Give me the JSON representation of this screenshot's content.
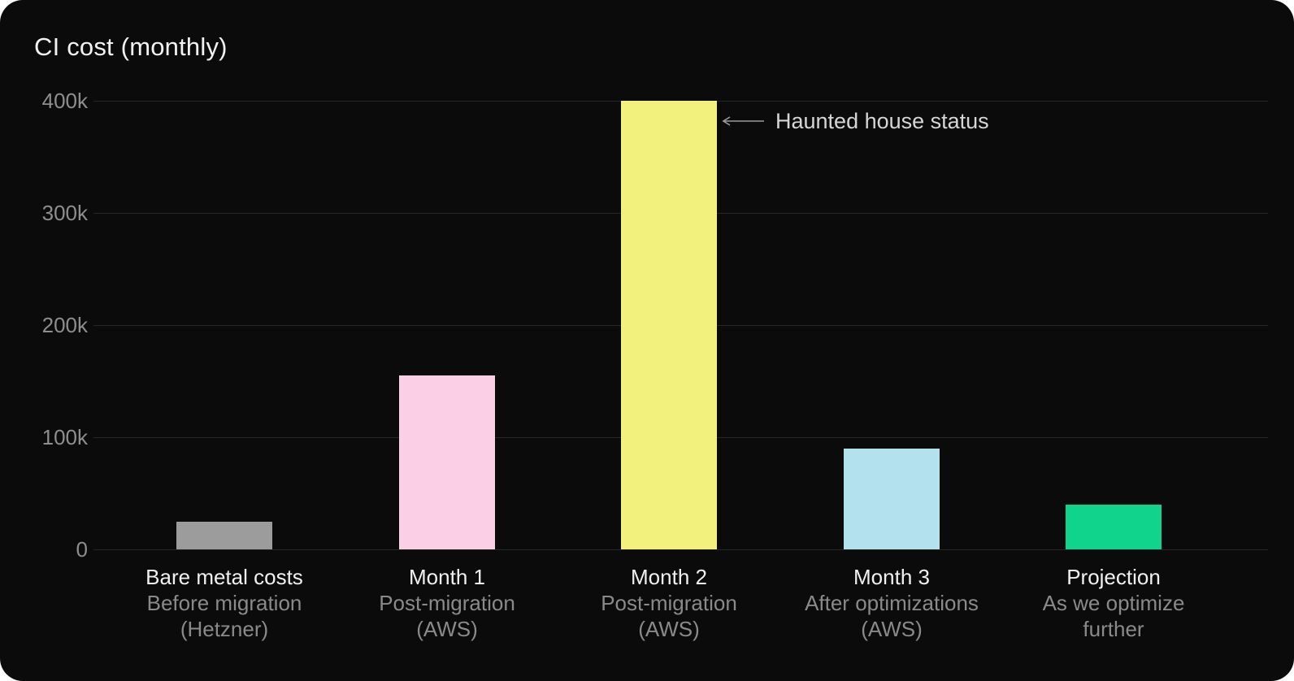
{
  "title": "CI cost (monthly)",
  "annotation": {
    "text": "Haunted house status"
  },
  "chart_data": {
    "type": "bar",
    "title": "CI cost (monthly)",
    "categories": [
      "Bare metal costs",
      "Month 1",
      "Month 2",
      "Month 3",
      "Projection"
    ],
    "category_sublabels": [
      [
        "Before migration",
        "(Hetzner)"
      ],
      [
        "Post-migration",
        "(AWS)"
      ],
      [
        "Post-migration",
        "(AWS)"
      ],
      [
        "After optimizations",
        "(AWS)"
      ],
      [
        "As we optimize",
        "further"
      ]
    ],
    "values": [
      25000,
      155000,
      400000,
      90000,
      40000
    ],
    "bar_colors": [
      "#9c9c9c",
      "#fbcfe6",
      "#f2f17e",
      "#b4e1ee",
      "#10d48c"
    ],
    "ylim": [
      0,
      400000
    ],
    "yticks": [
      0,
      100000,
      200000,
      300000,
      400000
    ],
    "ytick_labels": [
      "0",
      "100k",
      "200k",
      "300k",
      "400k"
    ],
    "grid": true,
    "legend": false,
    "annotations": [
      {
        "text": "Haunted house status",
        "target_category": "Month 2",
        "target_value": 400000
      }
    ],
    "colors": {
      "background": "#0b0b0b",
      "grid": "#262626",
      "tick_label": "#8e8e8e",
      "label_primary": "#f0f0f0",
      "label_secondary": "#8a8a8a",
      "annotation_text": "#d6d6d6",
      "annotation_arrow": "#9a9a9a"
    }
  }
}
